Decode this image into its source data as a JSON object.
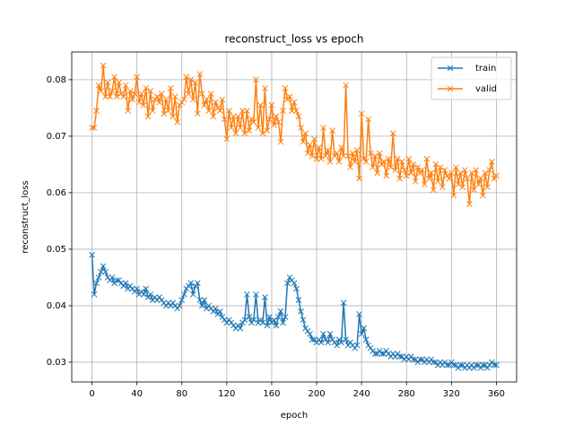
{
  "chart_data": {
    "type": "line",
    "title": "reconstruct_loss vs epoch",
    "xlabel": "epoch",
    "ylabel": "reconstruct_loss",
    "x": [
      0,
      2,
      4,
      6,
      8,
      10,
      12,
      14,
      16,
      18,
      20,
      22,
      24,
      26,
      28,
      30,
      32,
      34,
      36,
      38,
      40,
      42,
      44,
      46,
      48,
      50,
      52,
      54,
      56,
      58,
      60,
      62,
      64,
      66,
      68,
      70,
      72,
      74,
      76,
      78,
      80,
      82,
      84,
      86,
      88,
      90,
      92,
      94,
      96,
      98,
      100,
      102,
      104,
      106,
      108,
      110,
      112,
      114,
      116,
      118,
      120,
      122,
      124,
      126,
      128,
      130,
      132,
      134,
      136,
      138,
      140,
      142,
      144,
      146,
      148,
      150,
      152,
      154,
      156,
      158,
      160,
      162,
      164,
      166,
      168,
      170,
      172,
      174,
      176,
      178,
      180,
      182,
      184,
      186,
      188,
      190,
      192,
      194,
      196,
      198,
      200,
      202,
      204,
      206,
      208,
      210,
      212,
      214,
      216,
      218,
      220,
      222,
      224,
      226,
      228,
      230,
      232,
      234,
      236,
      238,
      240,
      242,
      244,
      246,
      248,
      250,
      252,
      254,
      256,
      258,
      260,
      262,
      264,
      266,
      268,
      270,
      272,
      274,
      276,
      278,
      280,
      282,
      284,
      286,
      288,
      290,
      292,
      294,
      296,
      298,
      300,
      302,
      304,
      306,
      308,
      310,
      312,
      314,
      316,
      318,
      320,
      322,
      324,
      326,
      328,
      330,
      332,
      334,
      336,
      338,
      340,
      342,
      344,
      346,
      348,
      350,
      352,
      354,
      356,
      358,
      360
    ],
    "series": [
      {
        "name": "train",
        "color": "#1f77b4",
        "values": [
          0.049,
          0.042,
          0.044,
          0.045,
          0.046,
          0.047,
          0.046,
          0.045,
          0.0445,
          0.045,
          0.044,
          0.0445,
          0.0445,
          0.044,
          0.0435,
          0.044,
          0.043,
          0.0435,
          0.043,
          0.0425,
          0.043,
          0.042,
          0.0425,
          0.042,
          0.043,
          0.0415,
          0.042,
          0.041,
          0.0415,
          0.041,
          0.0415,
          0.041,
          0.0405,
          0.04,
          0.0405,
          0.04,
          0.0405,
          0.04,
          0.0395,
          0.04,
          0.041,
          0.042,
          0.043,
          0.0435,
          0.044,
          0.042,
          0.0435,
          0.044,
          0.041,
          0.04,
          0.041,
          0.0395,
          0.04,
          0.0395,
          0.039,
          0.0395,
          0.0385,
          0.039,
          0.038,
          0.0375,
          0.037,
          0.0375,
          0.037,
          0.0365,
          0.036,
          0.0365,
          0.036,
          0.037,
          0.0375,
          0.042,
          0.038,
          0.037,
          0.0375,
          0.042,
          0.037,
          0.0375,
          0.037,
          0.0415,
          0.0365,
          0.038,
          0.037,
          0.0375,
          0.0365,
          0.038,
          0.039,
          0.037,
          0.038,
          0.044,
          0.045,
          0.0445,
          0.044,
          0.043,
          0.041,
          0.039,
          0.0375,
          0.036,
          0.0355,
          0.035,
          0.034,
          0.034,
          0.0335,
          0.034,
          0.0335,
          0.035,
          0.034,
          0.0335,
          0.035,
          0.034,
          0.0335,
          0.033,
          0.034,
          0.0335,
          0.0405,
          0.034,
          0.033,
          0.0335,
          0.033,
          0.0325,
          0.033,
          0.0385,
          0.035,
          0.036,
          0.034,
          0.033,
          0.0325,
          0.032,
          0.0315,
          0.0315,
          0.032,
          0.0315,
          0.0315,
          0.032,
          0.0315,
          0.031,
          0.0315,
          0.031,
          0.0315,
          0.031,
          0.031,
          0.0305,
          0.031,
          0.0305,
          0.031,
          0.0305,
          0.0305,
          0.03,
          0.0305,
          0.0305,
          0.03,
          0.0305,
          0.03,
          0.0305,
          0.03,
          0.03,
          0.0295,
          0.03,
          0.0295,
          0.03,
          0.0295,
          0.0295,
          0.03,
          0.0295,
          0.0295,
          0.029,
          0.0295,
          0.0295,
          0.029,
          0.0295,
          0.029,
          0.0295,
          0.029,
          0.0295,
          0.0295,
          0.029,
          0.0295,
          0.0295,
          0.029,
          0.0295,
          0.03,
          0.0295,
          0.0295
        ]
      },
      {
        "name": "valid",
        "color": "#ff7f0e",
        "values": [
          0.0715,
          0.0715,
          0.0745,
          0.079,
          0.078,
          0.0825,
          0.077,
          0.0795,
          0.077,
          0.078,
          0.0805,
          0.077,
          0.0795,
          0.0775,
          0.077,
          0.079,
          0.0745,
          0.078,
          0.0765,
          0.0775,
          0.0805,
          0.076,
          0.0775,
          0.0755,
          0.0785,
          0.0735,
          0.078,
          0.0745,
          0.0765,
          0.077,
          0.076,
          0.0775,
          0.074,
          0.0765,
          0.0745,
          0.0785,
          0.0735,
          0.077,
          0.0725,
          0.0755,
          0.076,
          0.0765,
          0.0805,
          0.0775,
          0.08,
          0.0765,
          0.0795,
          0.074,
          0.081,
          0.0775,
          0.0755,
          0.0765,
          0.0745,
          0.0775,
          0.0735,
          0.076,
          0.075,
          0.0745,
          0.0765,
          0.073,
          0.0695,
          0.0745,
          0.0715,
          0.0735,
          0.0705,
          0.0735,
          0.0715,
          0.0745,
          0.0705,
          0.0745,
          0.071,
          0.073,
          0.0725,
          0.08,
          0.0715,
          0.0755,
          0.0705,
          0.0785,
          0.071,
          0.073,
          0.0755,
          0.072,
          0.0735,
          0.0725,
          0.069,
          0.0745,
          0.0785,
          0.0765,
          0.077,
          0.0745,
          0.076,
          0.0745,
          0.0735,
          0.0715,
          0.069,
          0.0705,
          0.067,
          0.0685,
          0.0665,
          0.0695,
          0.066,
          0.068,
          0.066,
          0.0715,
          0.0665,
          0.0675,
          0.0655,
          0.071,
          0.0665,
          0.067,
          0.0655,
          0.068,
          0.0665,
          0.079,
          0.0665,
          0.0645,
          0.067,
          0.0655,
          0.0675,
          0.0625,
          0.074,
          0.066,
          0.0655,
          0.073,
          0.067,
          0.0645,
          0.0665,
          0.0635,
          0.067,
          0.065,
          0.0655,
          0.063,
          0.066,
          0.0645,
          0.0705,
          0.064,
          0.066,
          0.0625,
          0.0655,
          0.064,
          0.063,
          0.066,
          0.0635,
          0.065,
          0.062,
          0.0645,
          0.0635,
          0.064,
          0.0615,
          0.066,
          0.0625,
          0.0635,
          0.0605,
          0.065,
          0.062,
          0.0645,
          0.061,
          0.064,
          0.063,
          0.0625,
          0.0635,
          0.0595,
          0.0645,
          0.0615,
          0.0635,
          0.061,
          0.064,
          0.0625,
          0.058,
          0.0635,
          0.0605,
          0.064,
          0.0615,
          0.0625,
          0.0595,
          0.0635,
          0.061,
          0.064,
          0.0655,
          0.0625,
          0.063
        ]
      }
    ],
    "xlim": [
      -18,
      378
    ],
    "xticks": [
      0,
      40,
      80,
      120,
      160,
      200,
      240,
      280,
      320,
      360
    ],
    "ylim": [
      0.0265,
      0.0849
    ],
    "yticks": [
      0.03,
      0.04,
      0.05,
      0.06,
      0.07,
      0.08
    ],
    "grid": true,
    "legend": "upper right",
    "marker": "x"
  }
}
